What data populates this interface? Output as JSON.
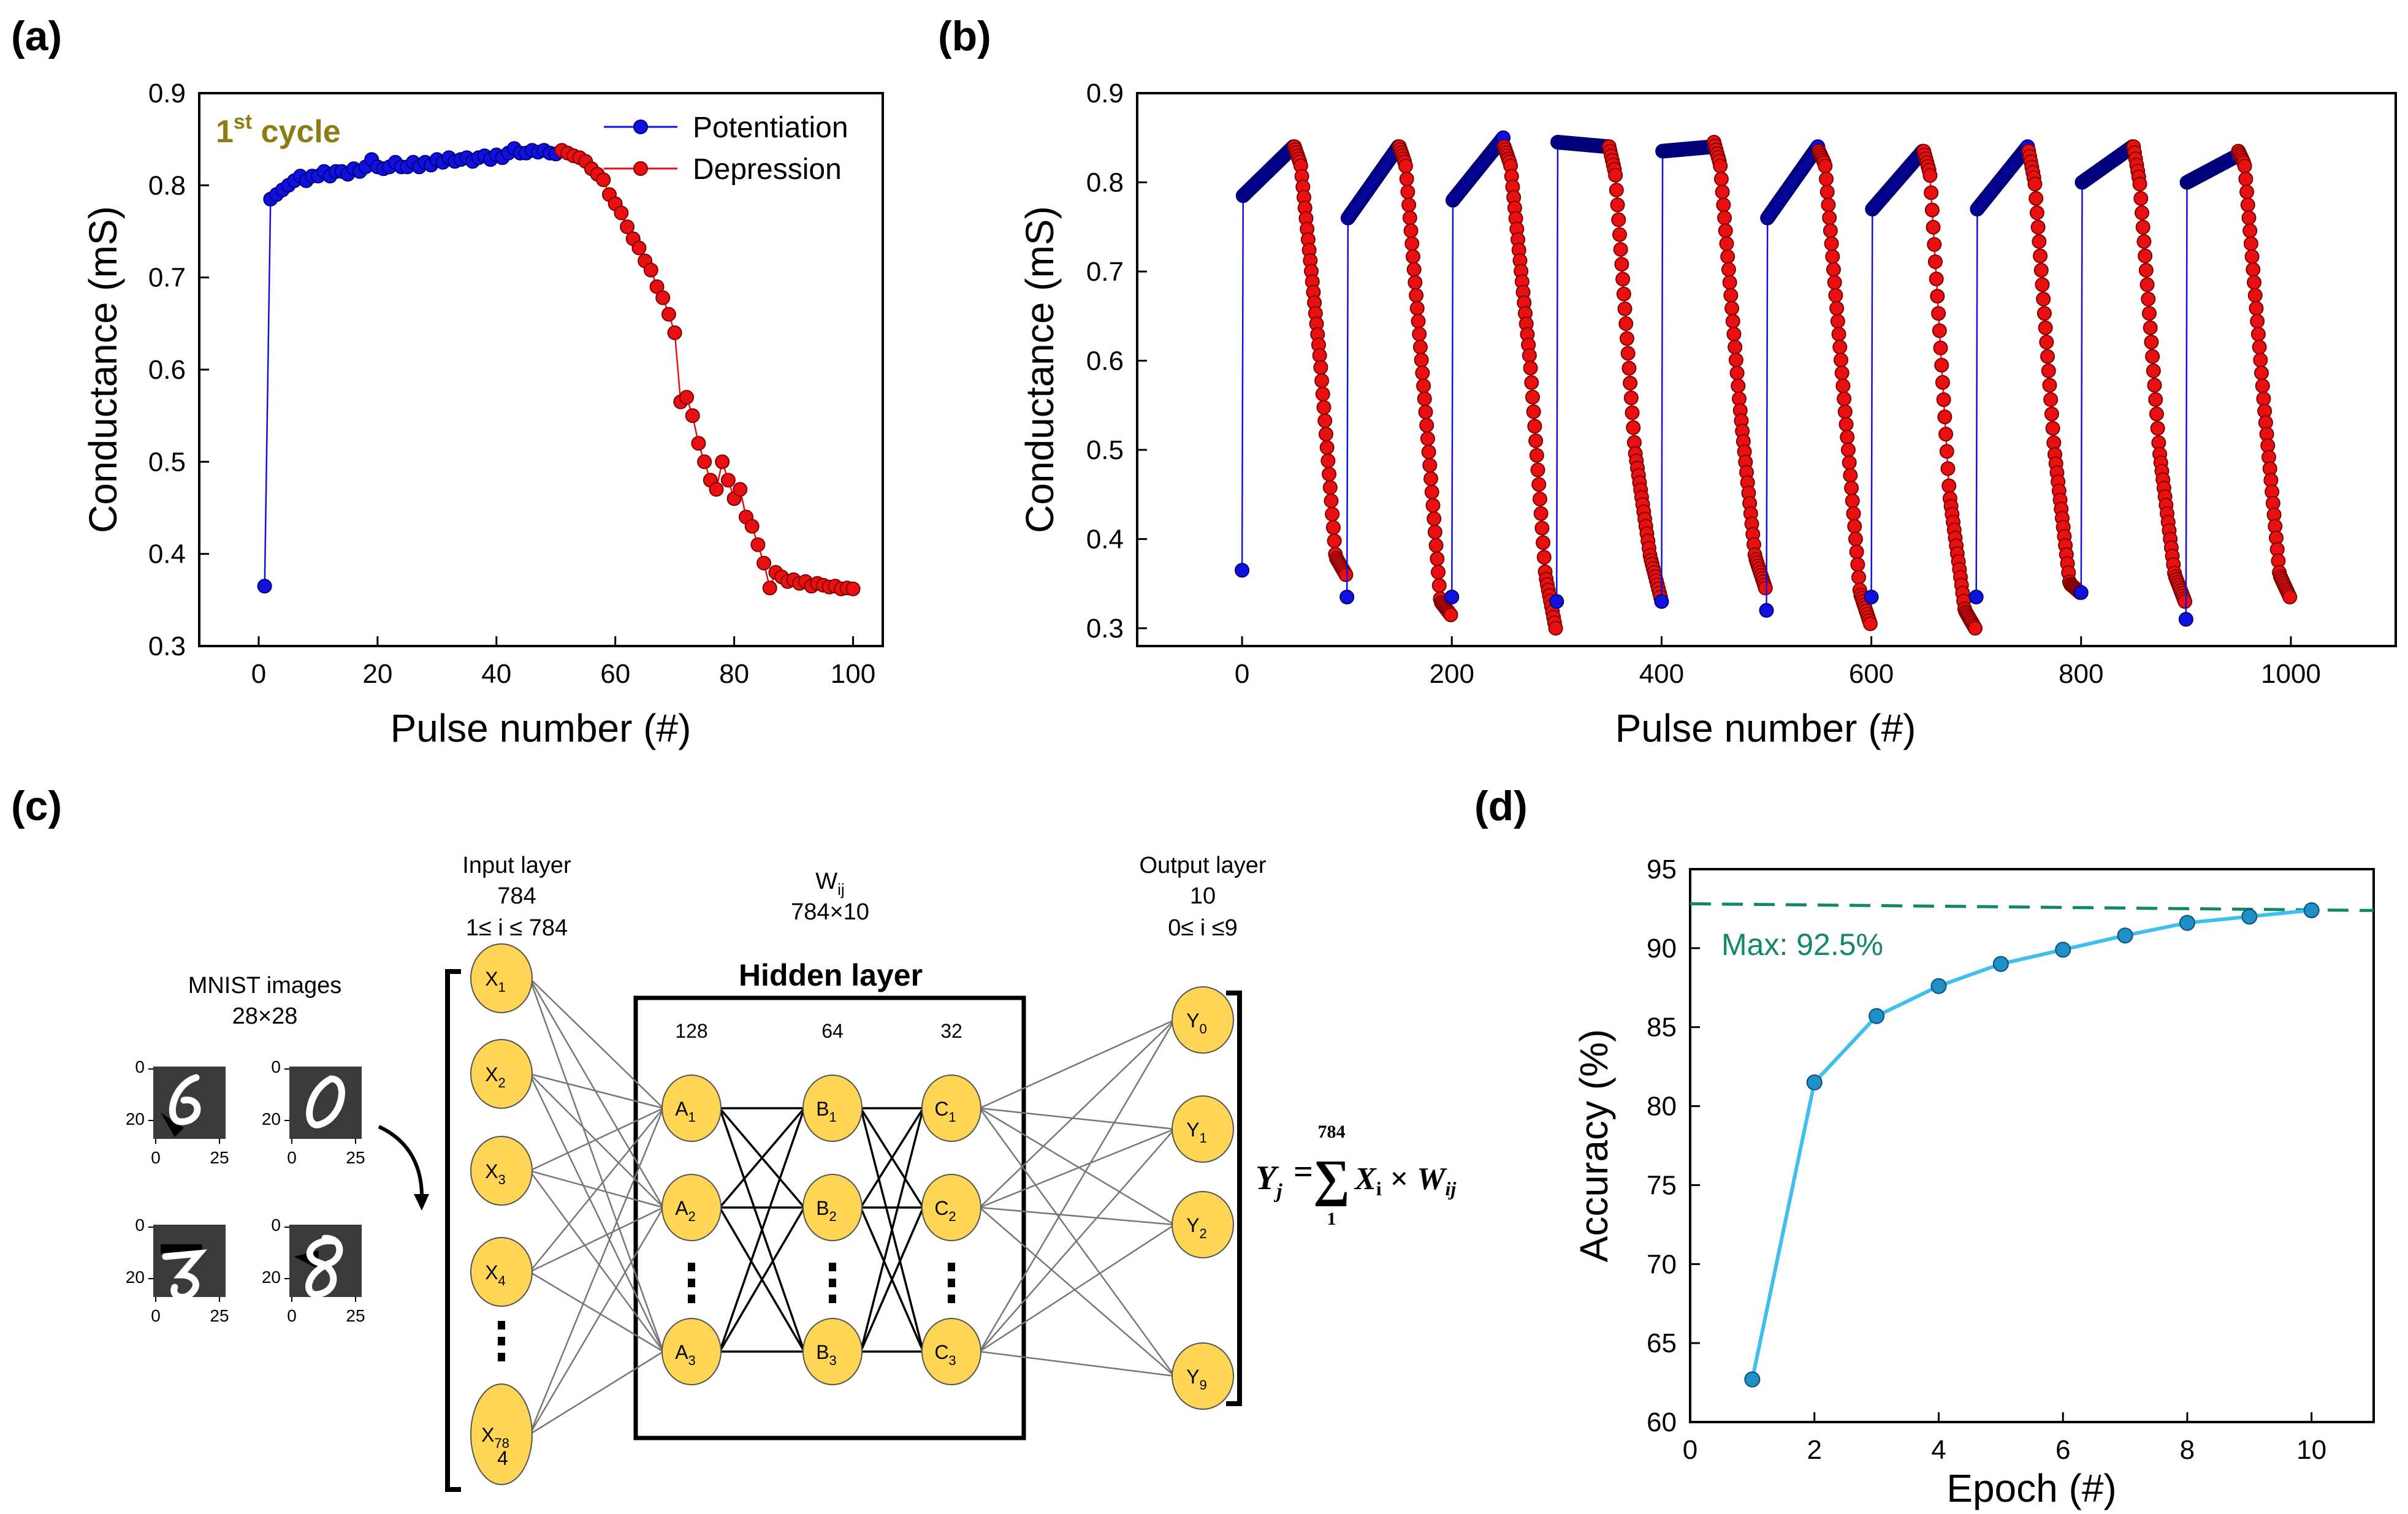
{
  "panels": {
    "a": "(a)",
    "b": "(b)",
    "c": "(c)",
    "d": "(d)"
  },
  "chart_data": [
    {
      "id": "a",
      "type": "scatter",
      "title": "",
      "annotation": {
        "base": "1",
        "sup": "st",
        "rest": " cycle"
      },
      "annotation_color": "#8b7d14",
      "xlabel": "Pulse number (#)",
      "ylabel": "Conductance (mS)",
      "xlim": [
        -10,
        105
      ],
      "ylim": [
        0.3,
        0.9
      ],
      "xticks": [
        "0",
        "20",
        "40",
        "60",
        "80",
        "100"
      ],
      "xtick_values": [
        0,
        20,
        40,
        60,
        80,
        100
      ],
      "yticks": [
        "0.3",
        "0.4",
        "0.5",
        "0.6",
        "0.7",
        "0.8",
        "0.9"
      ],
      "ytick_values": [
        0.3,
        0.4,
        0.5,
        0.6,
        0.7,
        0.8,
        0.9
      ],
      "legend": {
        "position": "top-right"
      },
      "series": [
        {
          "name": "Potentiation",
          "color": "#1010e0",
          "x_start": 1,
          "values": [
            0.365,
            0.785,
            0.79,
            0.795,
            0.8,
            0.805,
            0.81,
            0.805,
            0.81,
            0.81,
            0.815,
            0.81,
            0.815,
            0.815,
            0.812,
            0.818,
            0.815,
            0.82,
            0.828,
            0.82,
            0.818,
            0.82,
            0.825,
            0.82,
            0.82,
            0.825,
            0.82,
            0.825,
            0.822,
            0.828,
            0.825,
            0.83,
            0.826,
            0.828,
            0.83,
            0.826,
            0.83,
            0.832,
            0.828,
            0.833,
            0.83,
            0.835,
            0.84,
            0.835,
            0.835,
            0.838,
            0.836,
            0.838,
            0.835,
            0.834
          ]
        },
        {
          "name": "Depression",
          "color": "#e81010",
          "x_start": 51,
          "values": [
            0.838,
            0.835,
            0.832,
            0.83,
            0.826,
            0.818,
            0.812,
            0.806,
            0.79,
            0.78,
            0.77,
            0.755,
            0.742,
            0.732,
            0.718,
            0.708,
            0.69,
            0.678,
            0.66,
            0.64,
            0.565,
            0.57,
            0.55,
            0.52,
            0.5,
            0.48,
            0.47,
            0.5,
            0.48,
            0.46,
            0.47,
            0.44,
            0.43,
            0.41,
            0.39,
            0.363,
            0.38,
            0.375,
            0.37,
            0.372,
            0.368,
            0.37,
            0.365,
            0.368,
            0.366,
            0.364,
            0.365,
            0.362,
            0.363,
            0.362
          ]
        }
      ]
    },
    {
      "id": "b",
      "type": "scatter",
      "title": "",
      "xlabel": "Pulse number (#)",
      "ylabel": "Conductance (mS)",
      "xlim": [
        -100,
        1100
      ],
      "ylim": [
        0.28,
        0.9
      ],
      "xticks": [
        "0",
        "200",
        "400",
        "600",
        "800",
        "1000"
      ],
      "xtick_values": [
        0,
        200,
        400,
        600,
        800,
        1000
      ],
      "yticks": [
        "0.3",
        "0.4",
        "0.5",
        "0.6",
        "0.7",
        "0.8",
        "0.9"
      ],
      "ytick_values": [
        0.3,
        0.4,
        0.5,
        0.6,
        0.7,
        0.8,
        0.9
      ],
      "cycles": [
        {
          "start": 0,
          "p": [
            0.365,
            0.785,
            0.84
          ],
          "d": [
            0.84,
            0.82,
            0.6,
            0.38,
            0.36
          ]
        },
        {
          "start": 100,
          "p": [
            0.335,
            0.76,
            0.84
          ],
          "d": [
            0.84,
            0.82,
            0.55,
            0.33,
            0.315
          ]
        },
        {
          "start": 200,
          "p": [
            0.335,
            0.78,
            0.85
          ],
          "d": [
            0.84,
            0.82,
            0.6,
            0.36,
            0.3
          ]
        },
        {
          "start": 300,
          "p": [
            0.33,
            0.845,
            0.84
          ],
          "d": [
            0.84,
            0.81,
            0.5,
            0.38,
            0.335
          ]
        },
        {
          "start": 400,
          "p": [
            0.33,
            0.835,
            0.84
          ],
          "d": [
            0.845,
            0.82,
            0.55,
            0.38,
            0.345
          ]
        },
        {
          "start": 500,
          "p": [
            0.32,
            0.76,
            0.84
          ],
          "d": [
            0.835,
            0.82,
            0.55,
            0.34,
            0.305
          ]
        },
        {
          "start": 600,
          "p": [
            0.335,
            0.77,
            0.835
          ],
          "d": [
            0.835,
            0.81,
            0.45,
            0.32,
            0.3
          ]
        },
        {
          "start": 700,
          "p": [
            0.335,
            0.77,
            0.84
          ],
          "d": [
            0.835,
            0.8,
            0.5,
            0.35,
            0.34
          ]
        },
        {
          "start": 800,
          "p": [
            0.34,
            0.8,
            0.84
          ],
          "d": [
            0.84,
            0.8,
            0.5,
            0.36,
            0.33
          ]
        },
        {
          "start": 900,
          "p": [
            0.31,
            0.8,
            0.83
          ],
          "d": [
            0.835,
            0.82,
            0.55,
            0.36,
            0.335
          ]
        }
      ],
      "colors": {
        "potentiation": "#1010e0",
        "depression": "#e81010"
      }
    },
    {
      "id": "d",
      "type": "line",
      "title": "",
      "xlabel": "Epoch (#)",
      "ylabel": "Accuracy (%)",
      "x": [
        1,
        2,
        3,
        4,
        5,
        6,
        7,
        8,
        9,
        10
      ],
      "values": [
        62.7,
        81.5,
        85.7,
        87.6,
        89.0,
        89.9,
        90.8,
        91.6,
        92.0,
        92.4
      ],
      "xlim": [
        0,
        11
      ],
      "ylim": [
        60,
        95
      ],
      "xticks": [
        "0",
        "2",
        "4",
        "6",
        "8",
        "10"
      ],
      "xtick_values": [
        0,
        2,
        4,
        6,
        8,
        10
      ],
      "yticks": [
        "60",
        "65",
        "70",
        "75",
        "80",
        "85",
        "90",
        "95"
      ],
      "ytick_values": [
        60,
        65,
        70,
        75,
        80,
        85,
        90,
        95
      ],
      "max_line": {
        "value": 92.5,
        "label": "Max: 92.5%",
        "color": "#14876a"
      },
      "line_color": "#40bfef",
      "marker_color": "#1f8fc8"
    }
  ],
  "diagram": {
    "mnist_title": "MNIST images",
    "mnist_size": "28×28",
    "mnist_ticks": {
      "y0": "0",
      "y20": "20",
      "x0": "0",
      "x25": "25"
    },
    "input_layer": {
      "title": "Input layer",
      "count": "784",
      "range": "1≤ i ≤ 784"
    },
    "weights": {
      "symbol": "W",
      "sub": "ij",
      "size": "784×10"
    },
    "output_layer": {
      "title": "Output layer",
      "count": "10",
      "range": "0≤ i ≤9"
    },
    "hidden": {
      "title": "Hidden layer",
      "sizes": [
        "128",
        "64",
        "32"
      ]
    },
    "nodes": {
      "x": [
        {
          "b": "X",
          "s": "1"
        },
        {
          "b": "X",
          "s": "2"
        },
        {
          "b": "X",
          "s": "3"
        },
        {
          "b": "X",
          "s": "4"
        },
        {
          "b": "X",
          "s": "78"
        }
      ],
      "x_last_extra": "4",
      "a": [
        {
          "b": "A",
          "s": "1"
        },
        {
          "b": "A",
          "s": "2"
        },
        {
          "b": "A",
          "s": "3"
        }
      ],
      "bn": [
        {
          "b": "B",
          "s": "1"
        },
        {
          "b": "B",
          "s": "2"
        },
        {
          "b": "B",
          "s": "3"
        }
      ],
      "c": [
        {
          "b": "C",
          "s": "1"
        },
        {
          "b": "C",
          "s": "2"
        },
        {
          "b": "C",
          "s": "3"
        }
      ],
      "y": [
        {
          "b": "Y",
          "s": "0"
        },
        {
          "b": "Y",
          "s": "1"
        },
        {
          "b": "Y",
          "s": "2"
        },
        {
          "b": "Y",
          "s": "9"
        }
      ]
    },
    "formula": {
      "lhs": "Y",
      "lhs_sub": "j",
      "eq": "=",
      "sum": "∑",
      "upper": "784",
      "lower": "1",
      "term1": "X",
      "term1_sub": "i",
      "times": "×",
      "term2": "W",
      "term2_sub": "ij"
    },
    "node_color": "#ffd555"
  }
}
